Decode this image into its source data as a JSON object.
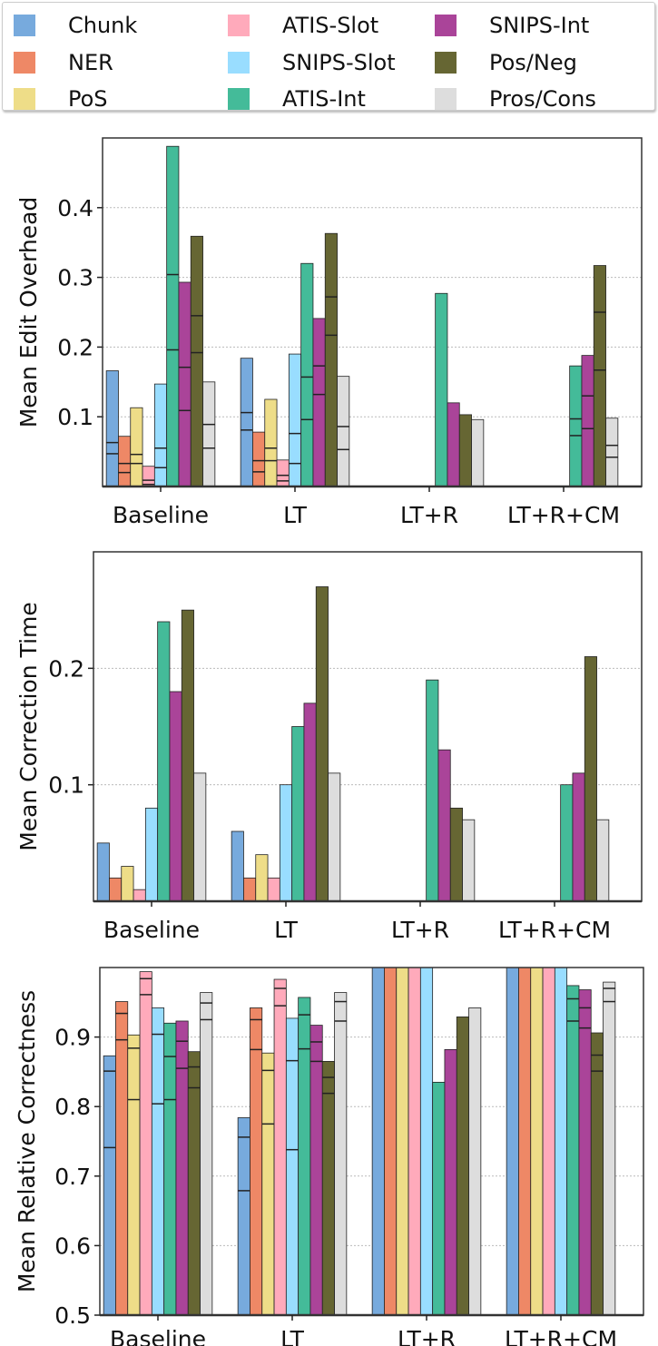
{
  "legend": {
    "placement": "top",
    "entries": [
      {
        "name": "Chunk",
        "color": "#77aadd"
      },
      {
        "name": "NER",
        "color": "#ee8866"
      },
      {
        "name": "PoS",
        "color": "#eedd88"
      },
      {
        "name": "ATIS-Slot",
        "color": "#ffaabb"
      },
      {
        "name": "SNIPS-Slot",
        "color": "#99ddff"
      },
      {
        "name": "ATIS-Int",
        "color": "#44bb99"
      },
      {
        "name": "SNIPS-Int",
        "color": "#aa4499"
      },
      {
        "name": "Pos/Neg",
        "color": "#666633"
      },
      {
        "name": "Pros/Cons",
        "color": "#dddddd"
      }
    ]
  },
  "chart_data": [
    {
      "type": "bar",
      "ylabel": "Mean Edit Overhead",
      "categories": [
        "Baseline",
        "LT",
        "LT+R",
        "LT+R+CM"
      ],
      "ylim": [
        0,
        0.5
      ],
      "yticks": [
        "0.1",
        "0.2",
        "0.3",
        "0.4"
      ],
      "grid": "horizontal dotted",
      "series": [
        {
          "name": "Chunk",
          "values": [
            0.166,
            0.184,
            null,
            null
          ],
          "marks": [
            [
              0.063,
              0.047
            ],
            [
              0.106,
              0.081
            ],
            [],
            []
          ]
        },
        {
          "name": "NER",
          "values": [
            0.072,
            0.078,
            null,
            null
          ],
          "marks": [
            [
              0.033,
              0.02
            ],
            [
              0.037,
              0.021
            ],
            [],
            []
          ]
        },
        {
          "name": "PoS",
          "values": [
            0.113,
            0.125,
            null,
            null
          ],
          "marks": [
            [
              0.046,
              0.033
            ],
            [
              0.055,
              0.037
            ],
            [],
            []
          ]
        },
        {
          "name": "ATIS-Slot",
          "values": [
            0.029,
            0.038,
            null,
            null
          ],
          "marks": [
            [
              0.009,
              0.003
            ],
            [
              0.016,
              0.008
            ],
            [],
            []
          ]
        },
        {
          "name": "SNIPS-Slot",
          "values": [
            0.147,
            0.19,
            null,
            null
          ],
          "marks": [
            [
              0.055,
              0.027
            ],
            [
              0.076,
              0.033
            ],
            [],
            []
          ]
        },
        {
          "name": "ATIS-Int",
          "values": [
            0.488,
            0.32,
            0.277,
            0.173
          ],
          "marks": [
            [
              0.304,
              0.196
            ],
            [
              0.157,
              0.096
            ],
            [],
            [
              0.097,
              0.073
            ]
          ]
        },
        {
          "name": "SNIPS-Int",
          "values": [
            0.293,
            0.241,
            0.12,
            0.188
          ],
          "marks": [
            [
              0.171,
              0.109
            ],
            [
              0.173,
              0.132
            ],
            [],
            [
              0.13,
              0.083
            ]
          ]
        },
        {
          "name": "Pos/Neg",
          "values": [
            0.359,
            0.363,
            0.103,
            0.317
          ],
          "marks": [
            [
              0.245,
              0.192
            ],
            [
              0.272,
              0.217
            ],
            [],
            [
              0.25,
              0.167
            ]
          ]
        },
        {
          "name": "Pros/Cons",
          "values": [
            0.15,
            0.158,
            0.096,
            0.098
          ],
          "marks": [
            [
              0.089,
              0.055
            ],
            [
              0.086,
              0.053
            ],
            [],
            [
              0.059,
              0.042
            ]
          ]
        }
      ]
    },
    {
      "type": "bar",
      "ylabel": "Mean Correction Time",
      "categories": [
        "Baseline",
        "LT",
        "LT+R",
        "LT+R+CM"
      ],
      "ylim": [
        0,
        0.3
      ],
      "yticks": [
        "0.1",
        "0.2"
      ],
      "grid": "horizontal dotted",
      "series": [
        {
          "name": "Chunk",
          "values": [
            0.05,
            0.06,
            null,
            null
          ]
        },
        {
          "name": "NER",
          "values": [
            0.02,
            0.02,
            null,
            null
          ]
        },
        {
          "name": "PoS",
          "values": [
            0.03,
            0.04,
            null,
            null
          ]
        },
        {
          "name": "ATIS-Slot",
          "values": [
            0.01,
            0.02,
            null,
            null
          ]
        },
        {
          "name": "SNIPS-Slot",
          "values": [
            0.08,
            0.1,
            null,
            null
          ]
        },
        {
          "name": "ATIS-Int",
          "values": [
            0.24,
            0.15,
            0.19,
            0.1
          ]
        },
        {
          "name": "SNIPS-Int",
          "values": [
            0.18,
            0.17,
            0.13,
            0.11
          ]
        },
        {
          "name": "Pos/Neg",
          "values": [
            0.25,
            0.27,
            0.08,
            0.21
          ]
        },
        {
          "name": "Pros/Cons",
          "values": [
            0.11,
            0.11,
            0.07,
            0.07
          ]
        }
      ]
    },
    {
      "type": "bar",
      "ylabel": "Mean Relative Correctness",
      "categories": [
        "Baseline",
        "LT",
        "LT+R",
        "LT+R+CM"
      ],
      "ylim": [
        0.5,
        1.0
      ],
      "yticks": [
        "0.5",
        "0.6",
        "0.7",
        "0.8",
        "0.9"
      ],
      "grid": "horizontal dotted",
      "series": [
        {
          "name": "Chunk",
          "values": [
            0.873,
            0.784,
            1.0,
            1.0
          ],
          "marks": [
            [
              0.851,
              0.741
            ],
            [
              0.756,
              0.679
            ],
            [],
            []
          ]
        },
        {
          "name": "NER",
          "values": [
            0.951,
            0.942,
            1.0,
            1.0
          ],
          "marks": [
            [
              0.934,
              0.896
            ],
            [
              0.925,
              0.882
            ],
            [],
            []
          ]
        },
        {
          "name": "PoS",
          "values": [
            0.903,
            0.877,
            1.0,
            1.0
          ],
          "marks": [
            [
              0.884,
              0.81
            ],
            [
              0.852,
              0.775
            ],
            [],
            []
          ]
        },
        {
          "name": "ATIS-Slot",
          "values": [
            0.994,
            0.983,
            1.0,
            1.0
          ],
          "marks": [
            [
              0.984,
              0.961
            ],
            [
              0.97,
              0.945
            ],
            [],
            []
          ]
        },
        {
          "name": "SNIPS-Slot",
          "values": [
            0.942,
            0.927,
            1.0,
            1.0
          ],
          "marks": [
            [
              0.904,
              0.804
            ],
            [
              0.866,
              0.738
            ],
            [],
            []
          ]
        },
        {
          "name": "ATIS-Int",
          "values": [
            0.92,
            0.957,
            0.835,
            0.974
          ],
          "marks": [
            [
              0.872,
              0.81
            ],
            [
              0.932,
              0.883
            ],
            [],
            [
              0.955,
              0.923
            ]
          ]
        },
        {
          "name": "SNIPS-Int",
          "values": [
            0.923,
            0.917,
            0.882,
            0.968
          ],
          "marks": [
            [
              0.894,
              0.855
            ],
            [
              0.893,
              0.865
            ],
            [],
            [
              0.942,
              0.913
            ]
          ]
        },
        {
          "name": "Pos/Neg",
          "values": [
            0.879,
            0.865,
            0.929,
            0.906
          ],
          "marks": [
            [
              0.857,
              0.827
            ],
            [
              0.842,
              0.819
            ],
            [],
            [
              0.874,
              0.851
            ]
          ]
        },
        {
          "name": "Pros/Cons",
          "values": [
            0.964,
            0.964,
            0.942,
            0.979
          ],
          "marks": [
            [
              0.949,
              0.925
            ],
            [
              0.951,
              0.923
            ],
            [],
            [
              0.97,
              0.951
            ]
          ]
        }
      ]
    }
  ]
}
